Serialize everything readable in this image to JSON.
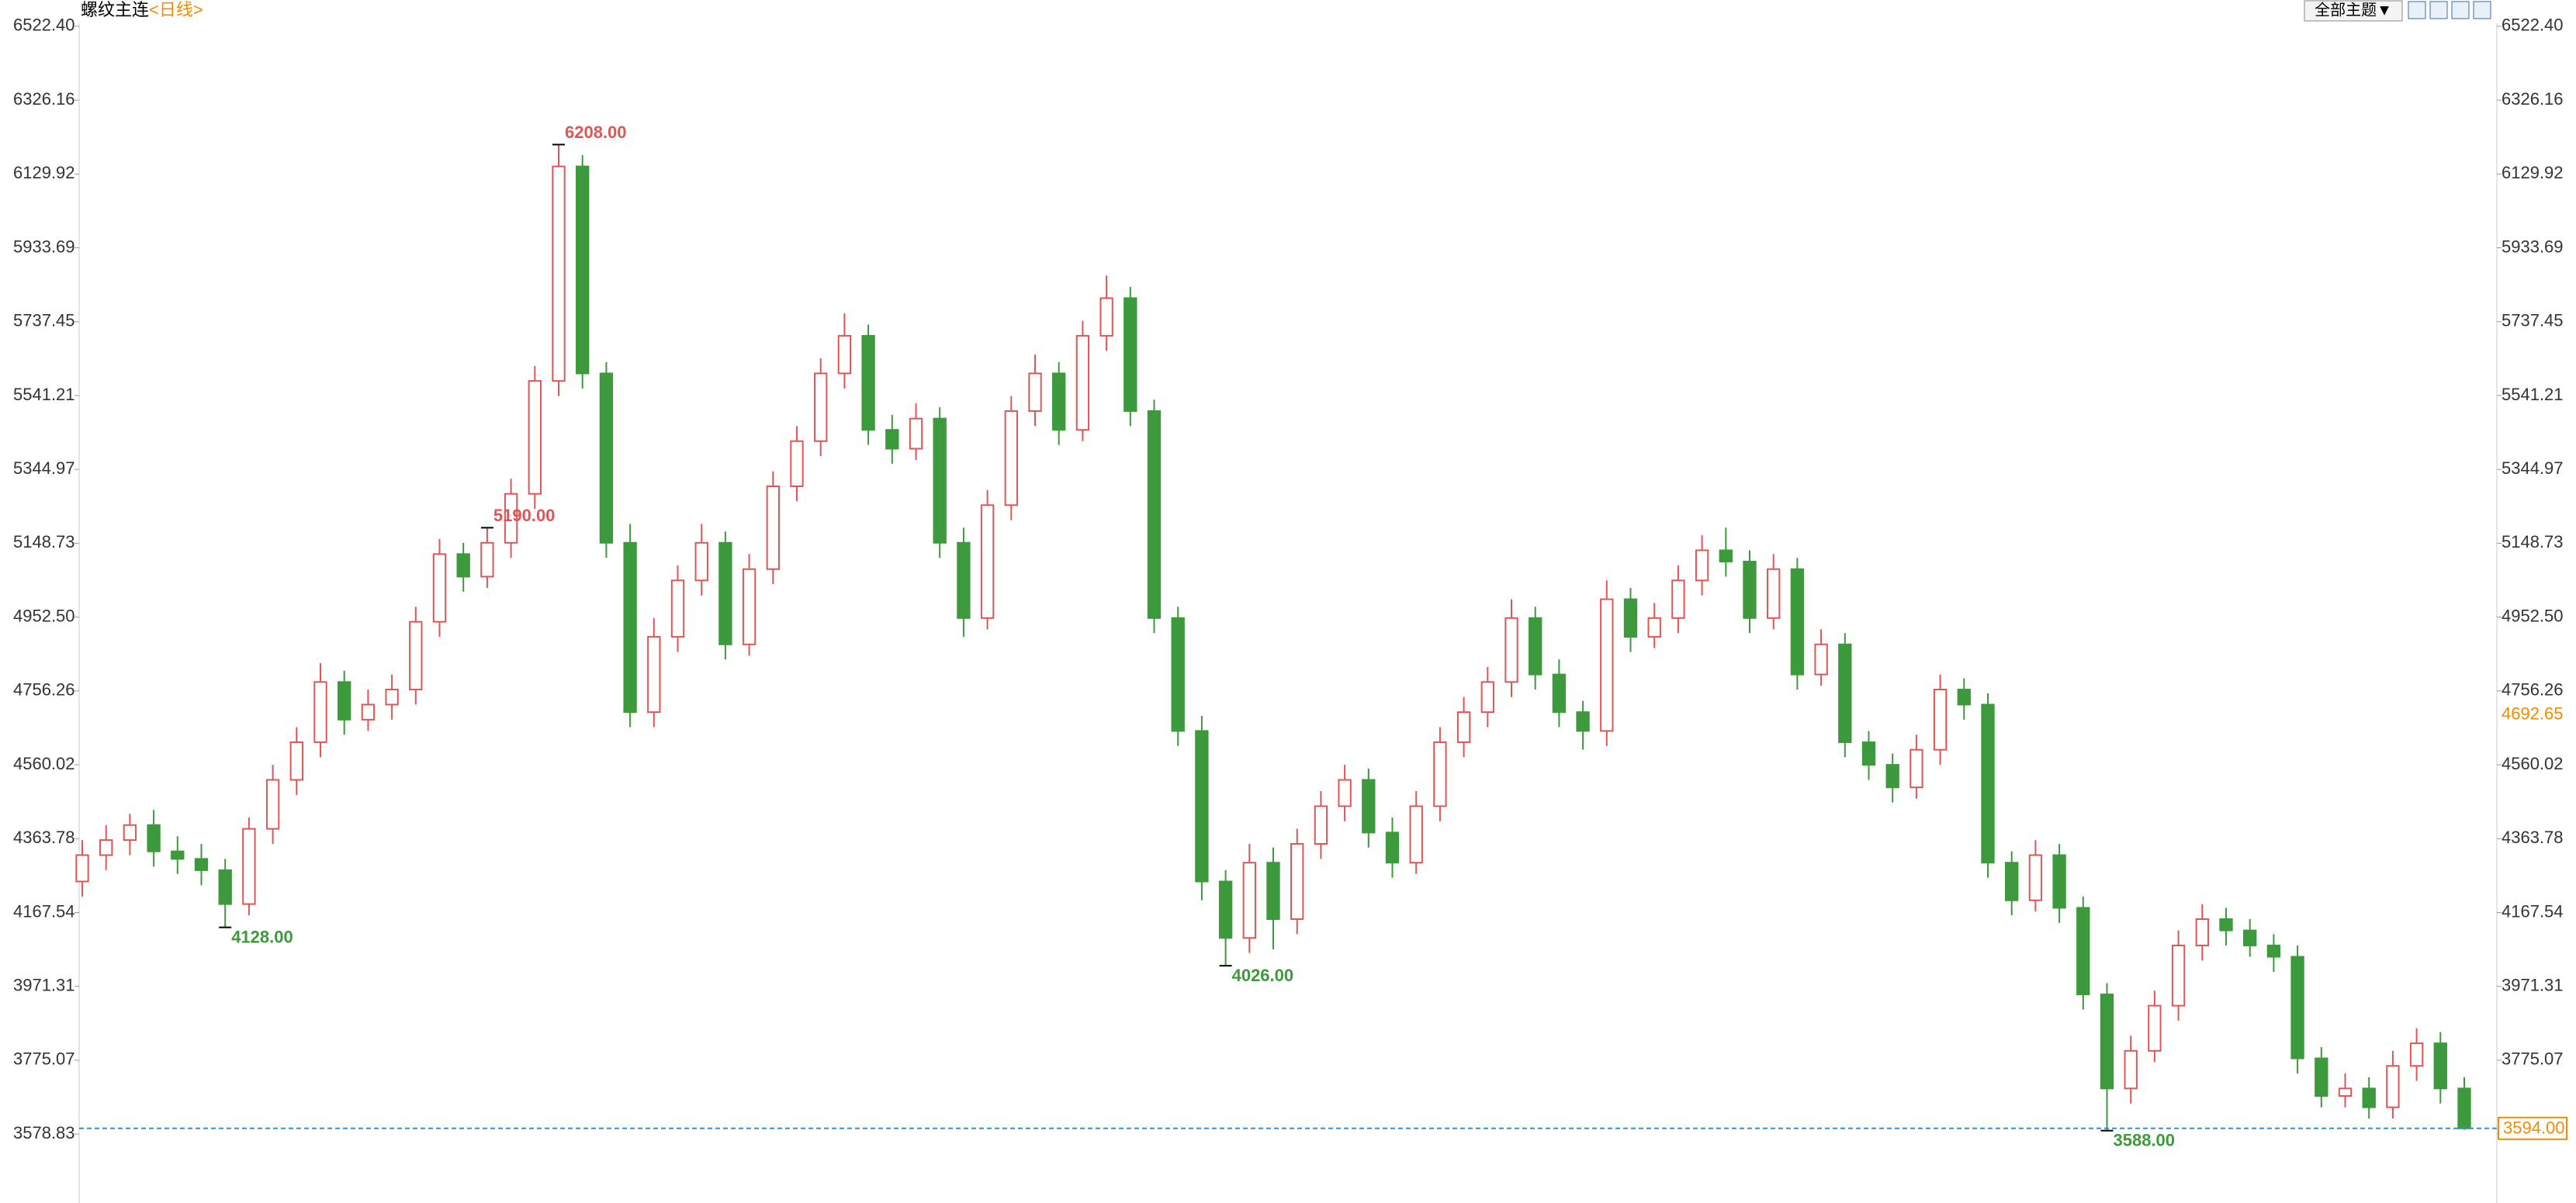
{
  "chart_data": {
    "type": "candlestick",
    "title": "螺纹主连",
    "subtitle": "<日线>",
    "theme_button": "全部主题▼",
    "up_color": "#e25555",
    "down_color": "#3c9a3c",
    "grid": false,
    "ylim": [
      3395.7,
      6592.2
    ],
    "yticks": [
      3578.83,
      3775.07,
      3971.31,
      4167.54,
      4363.78,
      4560.02,
      4756.26,
      {
        "value": 4952.5,
        "label": "4952.50"
      },
      5148.73,
      5344.97,
      5541.21,
      5737.45,
      5933.69,
      6129.92,
      6326.16,
      {
        "value": 6522.4,
        "label": "6522.40"
      }
    ],
    "open": [
      4250,
      4320,
      4360,
      4400,
      4330,
      4310,
      4280,
      4190,
      4390,
      4520,
      4620,
      4780,
      4680,
      4720,
      4760,
      4940,
      5120,
      5060,
      5150,
      5280,
      5580,
      6150,
      5600,
      5150,
      4700,
      4900,
      5050,
      5150,
      4880,
      5080,
      5300,
      5420,
      5600,
      5700,
      5450,
      5400,
      5480,
      5150,
      4950,
      5250,
      5500,
      5600,
      5450,
      5700,
      5800,
      5500,
      4950,
      4650,
      4250,
      4100,
      4300,
      4150,
      4350,
      4450,
      4520,
      4380,
      4300,
      4450,
      4620,
      4700,
      4780,
      4950,
      4800,
      4700,
      4650,
      5000,
      4900,
      4950,
      5050,
      5130,
      5100,
      4950,
      5080,
      4800,
      4880,
      4620,
      4560,
      4500,
      4600,
      4760,
      4720,
      4300,
      4200,
      4320,
      4180,
      3950,
      3700,
      3800,
      3920,
      4080,
      4150,
      4120,
      4080,
      4050,
      3780,
      3680,
      3700,
      3650,
      3760,
      3820,
      3700
    ],
    "high": [
      4360,
      4400,
      4430,
      4440,
      4370,
      4350,
      4310,
      4420,
      4560,
      4660,
      4830,
      4810,
      4760,
      4800,
      4980,
      5160,
      5150,
      5190,
      5320,
      5620,
      6208,
      6180,
      5630,
      5200,
      4950,
      5090,
      5200,
      5180,
      5120,
      5340,
      5460,
      5640,
      5760,
      5730,
      5490,
      5520,
      5510,
      5190,
      5290,
      5540,
      5650,
      5630,
      5740,
      5860,
      5830,
      5530,
      4980,
      4690,
      4280,
      4350,
      4340,
      4390,
      4490,
      4560,
      4550,
      4420,
      4490,
      4660,
      4740,
      4820,
      5000,
      4980,
      4840,
      4730,
      5050,
      5030,
      4990,
      5090,
      5170,
      5190,
      5130,
      5120,
      5110,
      4920,
      4910,
      4650,
      4590,
      4640,
      4800,
      4790,
      4750,
      4330,
      4360,
      4350,
      4210,
      3980,
      3840,
      3960,
      4120,
      4190,
      4180,
      4150,
      4110,
      4080,
      3810,
      3740,
      3730,
      3800,
      3860,
      3850,
      3730
    ],
    "low": [
      4210,
      4280,
      4320,
      4290,
      4270,
      4240,
      4128,
      4160,
      4350,
      4480,
      4580,
      4640,
      4650,
      4680,
      4720,
      4900,
      5020,
      5030,
      5110,
      5240,
      5540,
      5560,
      5110,
      4660,
      4660,
      4860,
      5010,
      4840,
      4850,
      5040,
      5260,
      5380,
      5560,
      5410,
      5360,
      5370,
      5110,
      4900,
      4920,
      5210,
      5460,
      5410,
      5420,
      5660,
      5460,
      4910,
      4610,
      4200,
      4026,
      4060,
      4070,
      4110,
      4310,
      4410,
      4340,
      4260,
      4270,
      4410,
      4580,
      4660,
      4740,
      4760,
      4660,
      4600,
      4610,
      4860,
      4870,
      4910,
      5010,
      5060,
      4910,
      4920,
      4760,
      4770,
      4580,
      4520,
      4460,
      4470,
      4560,
      4680,
      4260,
      4160,
      4170,
      4140,
      3910,
      3588,
      3660,
      3770,
      3880,
      4040,
      4080,
      4050,
      4010,
      3740,
      3650,
      3650,
      3620,
      3620,
      3720,
      3660,
      3590
    ],
    "close": [
      4320,
      4360,
      4400,
      4330,
      4310,
      4280,
      4190,
      4390,
      4520,
      4620,
      4780,
      4680,
      4720,
      4760,
      4940,
      5120,
      5060,
      5150,
      5280,
      5580,
      6150,
      5600,
      5150,
      4700,
      4900,
      5050,
      5150,
      4880,
      5080,
      5300,
      5420,
      5600,
      5700,
      5450,
      5400,
      5480,
      5150,
      4950,
      5250,
      5500,
      5600,
      5450,
      5700,
      5800,
      5500,
      4950,
      4650,
      4250,
      4100,
      4300,
      4150,
      4350,
      4450,
      4520,
      4380,
      4300,
      4450,
      4620,
      4700,
      4780,
      4950,
      4800,
      4700,
      4650,
      5000,
      4900,
      4950,
      5050,
      5130,
      5100,
      4950,
      5080,
      4800,
      4880,
      4620,
      4560,
      4500,
      4600,
      4760,
      4720,
      4300,
      4200,
      4320,
      4180,
      3950,
      3700,
      3800,
      3920,
      4080,
      4150,
      4120,
      4080,
      4050,
      3780,
      3680,
      3700,
      3650,
      3760,
      3820,
      3700,
      3594
    ],
    "extremes": [
      {
        "value": 6208,
        "label": "6208.00"
      },
      {
        "value": 4128,
        "label": "4128.00"
      },
      {
        "value": 4026,
        "label": "4026.00"
      },
      {
        "value": 5190,
        "label": "5190.00"
      },
      {
        "value": 3588,
        "label": "3588.00"
      }
    ],
    "cursor_price": 4692.65,
    "last_price": {
      "value": 3594,
      "label": "3594.00"
    }
  }
}
